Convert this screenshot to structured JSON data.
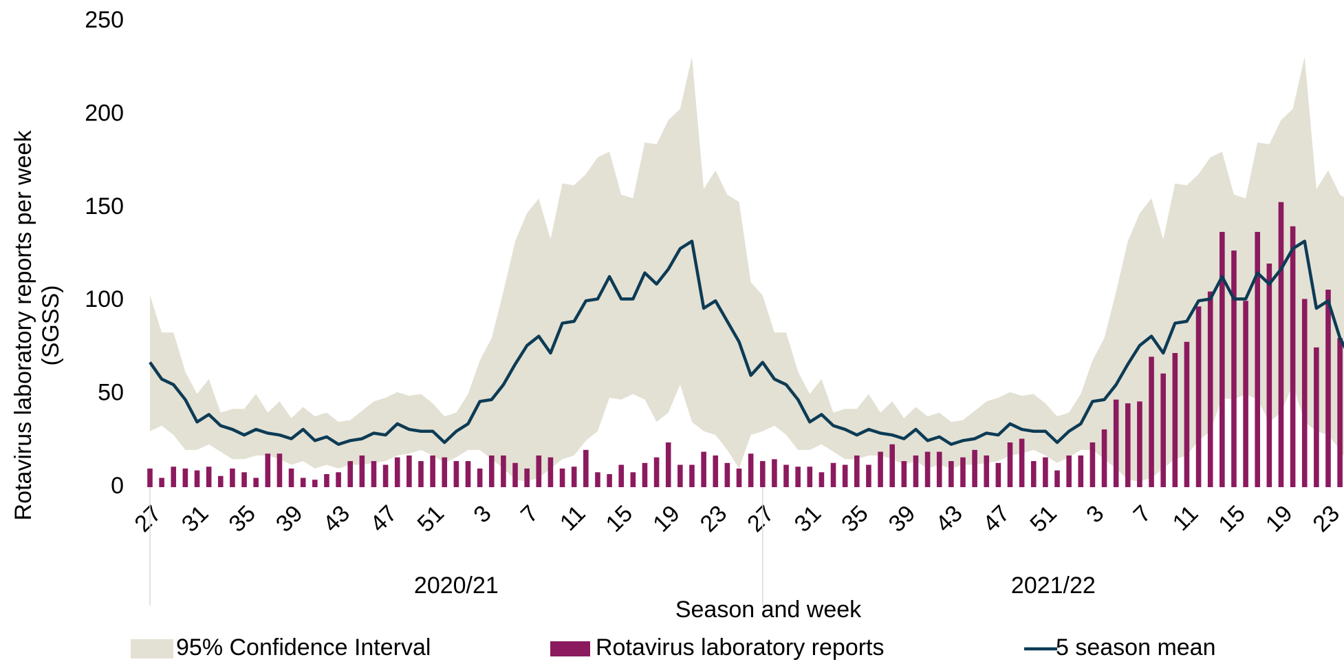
{
  "chart_data": {
    "type": "bar",
    "x_label": "Season and week",
    "y_label": [
      "Rotavirus laboratory reports per week",
      "(SGSS)"
    ],
    "ylim": [
      0,
      250
    ],
    "yticks": [
      0,
      50,
      100,
      150,
      200,
      250
    ],
    "legend": "bottom",
    "categories": [
      "27",
      null,
      null,
      null,
      "31",
      null,
      null,
      null,
      "35",
      null,
      null,
      null,
      "39",
      null,
      null,
      null,
      "43",
      null,
      null,
      null,
      "47",
      null,
      null,
      null,
      "51",
      null,
      null,
      null,
      "3",
      null,
      null,
      null,
      "7",
      null,
      null,
      null,
      "11",
      null,
      null,
      null,
      "15",
      null,
      null,
      null,
      "19",
      null,
      null,
      null,
      "23",
      null,
      null,
      null,
      "27",
      null,
      null,
      null,
      "31",
      null,
      null,
      null,
      "35",
      null,
      null,
      null,
      "39",
      null,
      null,
      null,
      "43",
      null,
      null,
      null,
      "47",
      null,
      null,
      null,
      "51",
      null,
      null,
      null,
      "3",
      null,
      null,
      null,
      "7",
      null,
      null,
      null,
      "11",
      null,
      null,
      null,
      "15",
      null,
      null,
      null,
      "19",
      null,
      null,
      null,
      "23",
      null,
      null
    ],
    "category_groups": [
      {
        "label": "2020/21",
        "size": 52
      },
      {
        "label": "2021/22",
        "size": 51
      }
    ],
    "series": [
      {
        "name": "95% Confidence Interval",
        "type": "band",
        "color": "#e3e1d4",
        "lower": [
          30,
          33,
          28,
          20,
          20,
          23,
          19,
          15,
          15,
          17,
          17,
          15,
          12,
          14,
          10,
          12,
          10,
          12,
          12,
          13,
          14,
          17,
          18,
          20,
          17,
          13,
          16,
          20,
          20,
          15,
          10,
          4,
          3,
          5,
          10,
          15,
          17,
          25,
          30,
          48,
          47,
          50,
          47,
          35,
          40,
          55,
          35,
          30,
          28,
          20,
          10,
          28,
          30,
          33,
          28,
          20,
          20,
          23,
          19,
          15,
          15,
          17,
          17,
          15,
          12,
          14,
          10,
          12,
          10,
          12,
          12,
          13,
          14,
          17,
          18,
          20,
          17,
          13,
          16,
          20,
          20,
          15,
          10,
          4,
          3,
          5,
          10,
          15,
          17,
          25,
          30,
          48,
          47,
          50,
          47,
          35,
          40,
          55,
          35,
          30,
          28,
          20,
          10
        ],
        "upper": [
          103,
          83,
          83,
          62,
          50,
          58,
          40,
          42,
          42,
          50,
          40,
          46,
          37,
          43,
          38,
          40,
          35,
          36,
          41,
          46,
          48,
          51,
          49,
          50,
          45,
          38,
          40,
          50,
          68,
          80,
          105,
          132,
          147,
          155,
          133,
          163,
          162,
          168,
          177,
          180,
          157,
          155,
          185,
          184,
          197,
          203,
          231,
          160,
          170,
          157,
          153,
          110,
          103,
          83,
          83,
          62,
          50,
          58,
          40,
          42,
          42,
          50,
          40,
          46,
          37,
          43,
          38,
          40,
          35,
          36,
          41,
          46,
          48,
          51,
          49,
          50,
          45,
          38,
          40,
          50,
          68,
          80,
          105,
          132,
          147,
          155,
          133,
          163,
          162,
          168,
          177,
          180,
          157,
          155,
          185,
          184,
          197,
          203,
          231,
          160,
          170,
          157,
          153
        ]
      },
      {
        "name": "Rotavirus laboratory reports",
        "type": "bar",
        "color": "#8b1a5e",
        "values": [
          10,
          5,
          11,
          10,
          9,
          11,
          6,
          10,
          8,
          5,
          18,
          18,
          10,
          5,
          4,
          7,
          8,
          14,
          17,
          14,
          12,
          16,
          17,
          14,
          17,
          16,
          14,
          14,
          10,
          17,
          17,
          13,
          10,
          17,
          16,
          10,
          11,
          20,
          8,
          7,
          12,
          8,
          13,
          16,
          24,
          12,
          12,
          19,
          17,
          13,
          10,
          18,
          14,
          15,
          12,
          11,
          11,
          8,
          13,
          12,
          17,
          12,
          19,
          23,
          14,
          17,
          19,
          19,
          14,
          16,
          20,
          17,
          13,
          24,
          26,
          14,
          16,
          9,
          17,
          17,
          24,
          31,
          47,
          45,
          46,
          70,
          61,
          72,
          78,
          97,
          105,
          137,
          127,
          100,
          137,
          120,
          153,
          140,
          101,
          75,
          106,
          80,
          68
        ]
      },
      {
        "name": "5 season mean",
        "type": "line",
        "color": "#0d3b55",
        "values": [
          67,
          58,
          55,
          47,
          35,
          39,
          33,
          31,
          28,
          31,
          29,
          28,
          26,
          31,
          25,
          27,
          23,
          25,
          26,
          29,
          28,
          34,
          31,
          30,
          30,
          24,
          30,
          34,
          46,
          47,
          55,
          66,
          76,
          81,
          72,
          88,
          89,
          100,
          101,
          113,
          101,
          101,
          115,
          109,
          117,
          128,
          132,
          96,
          100,
          89,
          78,
          60,
          67,
          58,
          55,
          47,
          35,
          39,
          33,
          31,
          28,
          31,
          29,
          28,
          26,
          31,
          25,
          27,
          23,
          25,
          26,
          29,
          28,
          34,
          31,
          30,
          30,
          24,
          30,
          34,
          46,
          47,
          55,
          66,
          76,
          81,
          72,
          88,
          89,
          100,
          101,
          113,
          101,
          101,
          115,
          109,
          117,
          128,
          132,
          96,
          100,
          80,
          68
        ]
      }
    ]
  }
}
